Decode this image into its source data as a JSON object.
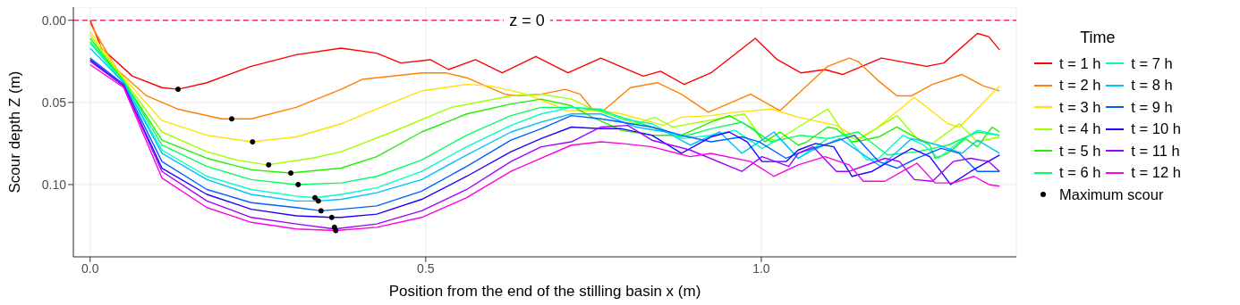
{
  "chart_data": {
    "type": "line",
    "xlabel": "Position from the end of the stilling basin x (m)",
    "ylabel": "Scour depth Z (m)",
    "legend_title": "Time",
    "legend": "right",
    "grid": true,
    "xlim": [
      -0.025,
      1.38
    ],
    "xticks": [
      {
        "value": 0,
        "label": "0.0"
      },
      {
        "value": 0.5,
        "label": "0.5"
      },
      {
        "value": 1,
        "label": "1.0"
      }
    ],
    "ylim": [
      0.144,
      -0.008
    ],
    "yticks": [
      {
        "value": 0,
        "label": "0.00"
      },
      {
        "value": 0.05,
        "label": "0.05"
      },
      {
        "value": 0.1,
        "label": "0.10"
      }
    ],
    "ref_lines": [
      {
        "axis": "y",
        "value": 0,
        "label": "z = 0",
        "color": "#e8336d",
        "line_style": "dashed"
      }
    ],
    "series": [
      {
        "name": "t = 1 h",
        "color": "#ff0000",
        "x": [
          0,
          0.017,
          0.063,
          0.107,
          0.131,
          0.174,
          0.24,
          0.307,
          0.374,
          0.427,
          0.463,
          0.507,
          0.534,
          0.574,
          0.614,
          0.664,
          0.712,
          0.761,
          0.824,
          0.85,
          0.885,
          0.925,
          0.991,
          1.024,
          1.059,
          1.095,
          1.121,
          1.179,
          1.246,
          1.272,
          1.322,
          1.339,
          1.355
        ],
        "values": [
          0,
          0.017,
          0.034,
          0.041,
          0.042,
          0.038,
          0.028,
          0.021,
          0.017,
          0.02,
          0.026,
          0.024,
          0.03,
          0.024,
          0.032,
          0.022,
          0.032,
          0.023,
          0.034,
          0.031,
          0.039,
          0.032,
          0.011,
          0.024,
          0.032,
          0.03,
          0.033,
          0.023,
          0.028,
          0.026,
          0.008,
          0.01,
          0.018
        ]
      },
      {
        "name": "t = 2 h",
        "color": "#ff8000",
        "x": [
          0,
          0.04,
          0.084,
          0.13,
          0.196,
          0.24,
          0.307,
          0.374,
          0.405,
          0.494,
          0.53,
          0.561,
          0.618,
          0.637,
          0.672,
          0.708,
          0.73,
          0.748,
          0.765,
          0.805,
          0.845,
          0.881,
          0.921,
          0.984,
          1.028,
          1.099,
          1.131,
          1.144,
          1.175,
          1.202,
          1.224,
          1.255,
          1.299,
          1.331,
          1.355
        ],
        "values": [
          0.002,
          0.03,
          0.046,
          0.054,
          0.06,
          0.06,
          0.053,
          0.042,
          0.036,
          0.032,
          0.032,
          0.035,
          0.045,
          0.046,
          0.045,
          0.042,
          0.045,
          0.054,
          0.055,
          0.041,
          0.038,
          0.045,
          0.056,
          0.045,
          0.055,
          0.028,
          0.023,
          0.025,
          0.037,
          0.046,
          0.046,
          0.039,
          0.033,
          0.04,
          0.043
        ]
      },
      {
        "name": "t = 3 h",
        "color": "#ffe000",
        "x": [
          0,
          0.05,
          0.107,
          0.174,
          0.24,
          0.307,
          0.374,
          0.427,
          0.494,
          0.561,
          0.597,
          0.65,
          0.694,
          0.708,
          0.761,
          0.792,
          0.854,
          0.881,
          0.925,
          0.961,
          1.015,
          1.055,
          1.112,
          1.144,
          1.171,
          1.228,
          1.278,
          1.295,
          1.355
        ],
        "values": [
          0.007,
          0.035,
          0.061,
          0.07,
          0.074,
          0.071,
          0.063,
          0.054,
          0.043,
          0.039,
          0.04,
          0.045,
          0.052,
          0.055,
          0.055,
          0.057,
          0.064,
          0.059,
          0.058,
          0.056,
          0.054,
          0.059,
          0.064,
          0.072,
          0.066,
          0.047,
          0.063,
          0.065,
          0.04
        ]
      },
      {
        "name": "t = 4 h",
        "color": "#a0ff00",
        "x": [
          0,
          0.05,
          0.107,
          0.174,
          0.218,
          0.263,
          0.33,
          0.374,
          0.45,
          0.538,
          0.627,
          0.672,
          0.717,
          0.748,
          0.814,
          0.841,
          0.868,
          0.935,
          0.975,
          1.001,
          1.024,
          1.055,
          1.099,
          1.125,
          1.144,
          1.202,
          1.232,
          1.255,
          1.295,
          1.322,
          1.355
        ],
        "values": [
          0.009,
          0.036,
          0.068,
          0.08,
          0.085,
          0.088,
          0.084,
          0.08,
          0.068,
          0.053,
          0.046,
          0.045,
          0.048,
          0.054,
          0.063,
          0.059,
          0.065,
          0.06,
          0.057,
          0.072,
          0.073,
          0.065,
          0.054,
          0.07,
          0.073,
          0.058,
          0.072,
          0.075,
          0.063,
          0.074,
          0.071
        ]
      },
      {
        "name": "t = 5 h",
        "color": "#20f000",
        "x": [
          0,
          0.05,
          0.107,
          0.174,
          0.24,
          0.298,
          0.374,
          0.427,
          0.494,
          0.561,
          0.627,
          0.672,
          0.717,
          0.748,
          0.792,
          0.837,
          0.881,
          0.925,
          0.952,
          0.988,
          1.005,
          1.028,
          1.055,
          1.068,
          1.099,
          1.112,
          1.135,
          1.152,
          1.175,
          1.202,
          1.224,
          1.251,
          1.259,
          1.278,
          1.304,
          1.322,
          1.344,
          1.355
        ],
        "values": [
          0.011,
          0.037,
          0.073,
          0.084,
          0.091,
          0.093,
          0.09,
          0.083,
          0.068,
          0.057,
          0.051,
          0.048,
          0.052,
          0.059,
          0.067,
          0.07,
          0.07,
          0.062,
          0.058,
          0.066,
          0.074,
          0.068,
          0.076,
          0.074,
          0.065,
          0.066,
          0.074,
          0.073,
          0.071,
          0.065,
          0.07,
          0.076,
          0.084,
          0.081,
          0.072,
          0.077,
          0.065,
          0.068
        ]
      },
      {
        "name": "t = 6 h",
        "color": "#00ff60",
        "x": [
          0,
          0.05,
          0.107,
          0.174,
          0.24,
          0.307,
          0.374,
          0.427,
          0.494,
          0.561,
          0.627,
          0.672,
          0.717,
          0.761,
          0.792,
          0.837,
          0.881,
          0.925,
          0.971,
          1.015,
          1.059,
          1.099,
          1.144,
          1.188,
          1.232,
          1.278,
          1.322,
          1.355
        ],
        "values": [
          0.013,
          0.037,
          0.076,
          0.089,
          0.097,
          0.1,
          0.099,
          0.095,
          0.085,
          0.07,
          0.058,
          0.053,
          0.053,
          0.055,
          0.059,
          0.065,
          0.071,
          0.066,
          0.062,
          0.074,
          0.07,
          0.072,
          0.068,
          0.082,
          0.08,
          0.076,
          0.068,
          0.07
        ]
      },
      {
        "name": "t = 7 h",
        "color": "#00ffc0",
        "x": [
          0,
          0.05,
          0.107,
          0.174,
          0.24,
          0.307,
          0.335,
          0.374,
          0.427,
          0.494,
          0.561,
          0.627,
          0.672,
          0.717,
          0.761,
          0.792,
          0.837,
          0.881,
          0.925,
          0.961,
          1.001,
          1.028,
          1.055,
          1.099,
          1.125,
          1.157,
          1.175,
          1.211,
          1.242,
          1.264,
          1.295,
          1.322,
          1.355
        ],
        "values": [
          0.014,
          0.038,
          0.079,
          0.095,
          0.103,
          0.107,
          0.108,
          0.106,
          0.102,
          0.092,
          0.077,
          0.064,
          0.057,
          0.053,
          0.054,
          0.06,
          0.063,
          0.072,
          0.07,
          0.067,
          0.078,
          0.072,
          0.084,
          0.072,
          0.07,
          0.085,
          0.084,
          0.07,
          0.076,
          0.084,
          0.074,
          0.067,
          0.07
        ]
      },
      {
        "name": "t = 8 h",
        "color": "#00c0ff",
        "x": [
          0,
          0.05,
          0.107,
          0.174,
          0.24,
          0.307,
          0.34,
          0.374,
          0.427,
          0.494,
          0.561,
          0.627,
          0.672,
          0.717,
          0.761,
          0.814,
          0.858,
          0.894,
          0.938,
          0.971,
          1.019,
          1.055,
          1.077,
          1.117,
          1.178,
          1.224,
          1.264,
          1.299,
          1.322,
          1.355
        ],
        "values": [
          0.017,
          0.038,
          0.081,
          0.097,
          0.106,
          0.11,
          0.11,
          0.109,
          0.105,
          0.097,
          0.082,
          0.068,
          0.062,
          0.057,
          0.057,
          0.065,
          0.068,
          0.076,
          0.068,
          0.081,
          0.068,
          0.084,
          0.079,
          0.072,
          0.089,
          0.072,
          0.076,
          0.081,
          0.073,
          0.081
        ]
      },
      {
        "name": "t = 9 h",
        "color": "#0060ff",
        "x": [
          0,
          0.05,
          0.107,
          0.174,
          0.24,
          0.307,
          0.344,
          0.374,
          0.427,
          0.494,
          0.561,
          0.627,
          0.672,
          0.717,
          0.761,
          0.837,
          0.881,
          0.925,
          0.971,
          0.997,
          1.037,
          1.055,
          1.139,
          1.175,
          1.202,
          1.232,
          1.268,
          1.295,
          1.322,
          1.355
        ],
        "values": [
          0.023,
          0.039,
          0.086,
          0.103,
          0.111,
          0.114,
          0.116,
          0.115,
          0.113,
          0.104,
          0.089,
          0.073,
          0.066,
          0.058,
          0.06,
          0.065,
          0.07,
          0.074,
          0.071,
          0.074,
          0.084,
          0.081,
          0.07,
          0.086,
          0.09,
          0.084,
          0.078,
          0.081,
          0.092,
          0.092
        ]
      },
      {
        "name": "t = 10 h",
        "color": "#2000ff",
        "x": [
          0,
          0.05,
          0.107,
          0.174,
          0.24,
          0.307,
          0.36,
          0.374,
          0.427,
          0.494,
          0.561,
          0.627,
          0.672,
          0.717,
          0.761,
          0.792,
          0.837,
          0.881,
          0.925,
          0.952,
          0.979,
          1.001,
          1.037,
          1.055,
          1.081,
          1.108,
          1.135,
          1.165,
          1.224,
          1.251,
          1.282,
          1.312,
          1.355
        ],
        "values": [
          0.024,
          0.04,
          0.09,
          0.106,
          0.115,
          0.119,
          0.12,
          0.12,
          0.118,
          0.109,
          0.095,
          0.08,
          0.072,
          0.065,
          0.066,
          0.066,
          0.07,
          0.081,
          0.071,
          0.068,
          0.074,
          0.086,
          0.086,
          0.079,
          0.075,
          0.077,
          0.095,
          0.092,
          0.078,
          0.083,
          0.1,
          0.092,
          0.082
        ]
      },
      {
        "name": "t = 11 h",
        "color": "#a000ff",
        "x": [
          0,
          0.05,
          0.107,
          0.174,
          0.24,
          0.307,
          0.364,
          0.427,
          0.494,
          0.561,
          0.627,
          0.672,
          0.717,
          0.761,
          0.801,
          0.837,
          0.894,
          0.971,
          1.001,
          1.041,
          1.055,
          1.077,
          1.112,
          1.131,
          1.184,
          1.206,
          1.228,
          1.255,
          1.286,
          1.312,
          1.339,
          1.355
        ],
        "values": [
          0.025,
          0.04,
          0.092,
          0.11,
          0.12,
          0.124,
          0.127,
          0.124,
          0.116,
          0.103,
          0.086,
          0.077,
          0.074,
          0.065,
          0.064,
          0.073,
          0.079,
          0.092,
          0.083,
          0.089,
          0.081,
          0.077,
          0.092,
          0.092,
          0.084,
          0.086,
          0.097,
          0.098,
          0.086,
          0.084,
          0.086,
          0.092
        ]
      },
      {
        "name": "t = 12 h",
        "color": "#ff00e0",
        "x": [
          0,
          0.05,
          0.107,
          0.174,
          0.24,
          0.307,
          0.366,
          0.427,
          0.494,
          0.561,
          0.627,
          0.672,
          0.717,
          0.761,
          0.792,
          0.837,
          0.894,
          0.925,
          0.984,
          1.019,
          1.055,
          1.095,
          1.131,
          1.152,
          1.184,
          1.232,
          1.259,
          1.286,
          1.317,
          1.339,
          1.355
        ],
        "values": [
          0.027,
          0.041,
          0.096,
          0.114,
          0.123,
          0.127,
          0.128,
          0.126,
          0.12,
          0.108,
          0.092,
          0.084,
          0.076,
          0.074,
          0.075,
          0.077,
          0.083,
          0.081,
          0.086,
          0.095,
          0.088,
          0.083,
          0.088,
          0.098,
          0.098,
          0.087,
          0.099,
          0.099,
          0.095,
          0.1,
          0.101
        ]
      },
      {
        "name": "Maximum scour",
        "type": "scatter",
        "marker": "circle",
        "color": "#000000",
        "x": [
          0.131,
          0.211,
          0.242,
          0.266,
          0.299,
          0.31,
          0.335,
          0.34,
          0.344,
          0.36,
          0.364,
          0.366
        ],
        "values": [
          0.042,
          0.06,
          0.074,
          0.088,
          0.093,
          0.1,
          0.108,
          0.11,
          0.116,
          0.12,
          0.126,
          0.128
        ]
      }
    ]
  }
}
